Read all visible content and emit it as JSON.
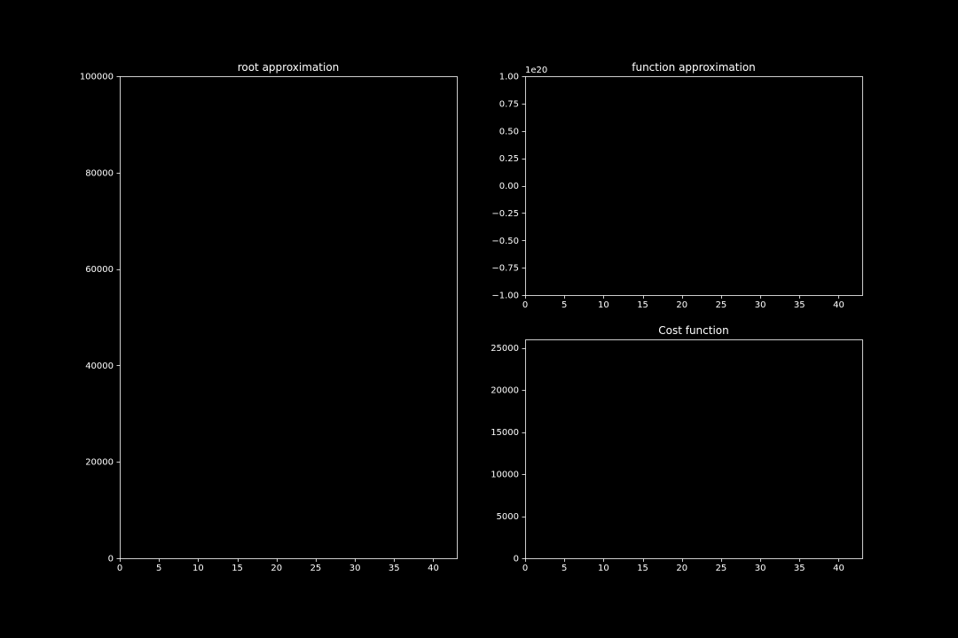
{
  "figure": {
    "background": "#000000",
    "foreground": "#ffffff"
  },
  "chart_data": [
    {
      "id": "root",
      "type": "line",
      "title": "root approximation",
      "xlabel": "",
      "ylabel": "",
      "xlim": [
        0,
        43
      ],
      "ylim": [
        0,
        100000
      ],
      "xticks": [
        0,
        5,
        10,
        15,
        20,
        25,
        30,
        35,
        40
      ],
      "xtick_labels": [
        "0",
        "5",
        "10",
        "15",
        "20",
        "25",
        "30",
        "35",
        "40"
      ],
      "yticks": [
        0,
        20000,
        40000,
        60000,
        80000,
        100000
      ],
      "ytick_labels": [
        "0",
        "20000",
        "40000",
        "60000",
        "80000",
        "100000"
      ],
      "offset_text": "",
      "series": [],
      "grid": false
    },
    {
      "id": "function",
      "type": "line",
      "title": "function approximation",
      "xlabel": "",
      "ylabel": "",
      "xlim": [
        0,
        43
      ],
      "ylim": [
        -1.0,
        1.0
      ],
      "y_scale_factor": "1e20",
      "xticks": [
        0,
        5,
        10,
        15,
        20,
        25,
        30,
        35,
        40
      ],
      "xtick_labels": [
        "0",
        "5",
        "10",
        "15",
        "20",
        "25",
        "30",
        "35",
        "40"
      ],
      "yticks": [
        -1.0,
        -0.75,
        -0.5,
        -0.25,
        0.0,
        0.25,
        0.5,
        0.75,
        1.0
      ],
      "ytick_labels": [
        "−1.00",
        "−0.75",
        "−0.50",
        "−0.25",
        "0.00",
        "0.25",
        "0.50",
        "0.75",
        "1.00"
      ],
      "offset_text": "1e20",
      "series": [],
      "grid": false
    },
    {
      "id": "cost",
      "type": "line",
      "title": "Cost function",
      "xlabel": "",
      "ylabel": "",
      "xlim": [
        0,
        43
      ],
      "ylim": [
        0,
        26000
      ],
      "xticks": [
        0,
        5,
        10,
        15,
        20,
        25,
        30,
        35,
        40
      ],
      "xtick_labels": [
        "0",
        "5",
        "10",
        "15",
        "20",
        "25",
        "30",
        "35",
        "40"
      ],
      "yticks": [
        0,
        5000,
        10000,
        15000,
        20000,
        25000
      ],
      "ytick_labels": [
        "0",
        "5000",
        "10000",
        "15000",
        "20000",
        "25000"
      ],
      "offset_text": "",
      "series": [],
      "grid": false
    }
  ]
}
